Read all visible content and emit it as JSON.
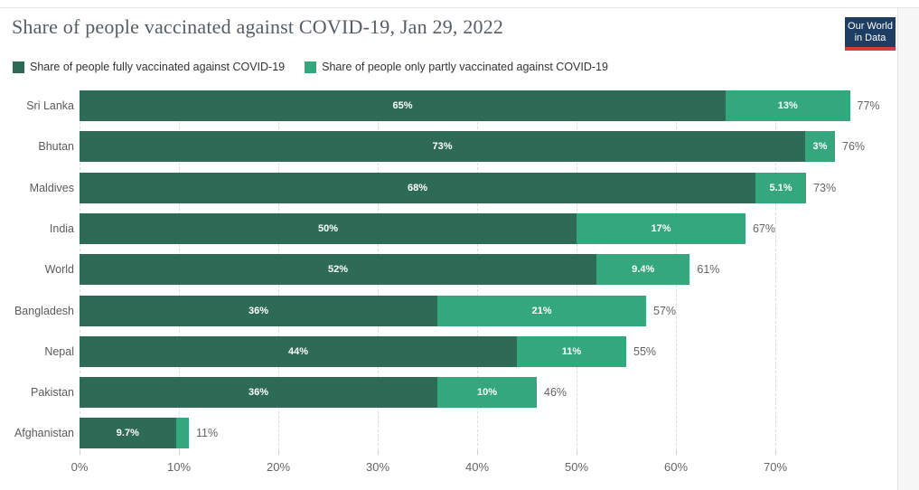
{
  "header": {
    "title": "Share of people vaccinated against COVID-19, Jan 29, 2022",
    "logo": {
      "line1": "Our World",
      "line2": "in Data",
      "bg_color": "#1d3d63",
      "underline_color": "#d73c3c"
    }
  },
  "legend": {
    "items": [
      {
        "label": "Share of people fully vaccinated against COVID-19",
        "color": "#2d6b57"
      },
      {
        "label": "Share of people only partly vaccinated against COVID-19",
        "color": "#34a87c"
      }
    ]
  },
  "chart_data": {
    "type": "bar",
    "orientation": "horizontal-stacked",
    "title": "Share of people vaccinated against COVID-19, Jan 29, 2022",
    "categories": [
      "Sri Lanka",
      "Bhutan",
      "Maldives",
      "India",
      "World",
      "Bangladesh",
      "Nepal",
      "Pakistan",
      "Afghanistan"
    ],
    "series": [
      {
        "name": "Share of people fully vaccinated against COVID-19",
        "color": "#2d6b57",
        "values": [
          65,
          73,
          68,
          50,
          52,
          36,
          44,
          36,
          9.7
        ],
        "labels": [
          "65%",
          "73%",
          "68%",
          "50%",
          "52%",
          "36%",
          "44%",
          "36%",
          "9.7%"
        ]
      },
      {
        "name": "Share of people only partly vaccinated against COVID-19",
        "color": "#34a87c",
        "values": [
          12.5,
          3,
          5.1,
          17,
          9.4,
          21,
          11,
          10,
          1.3
        ],
        "labels": [
          "13%",
          "3%",
          "5.1%",
          "17%",
          "9.4%",
          "21%",
          "11%",
          "10%",
          ""
        ]
      }
    ],
    "totals": [
      "77%",
      "76%",
      "73%",
      "67%",
      "61%",
      "57%",
      "55%",
      "46%",
      "11%"
    ],
    "x_ticks": [
      {
        "value": 0,
        "label": "0%"
      },
      {
        "value": 10,
        "label": "10%"
      },
      {
        "value": 20,
        "label": "20%"
      },
      {
        "value": 30,
        "label": "30%"
      },
      {
        "value": 40,
        "label": "40%"
      },
      {
        "value": 50,
        "label": "50%"
      },
      {
        "value": 60,
        "label": "60%"
      },
      {
        "value": 70,
        "label": "70%"
      }
    ],
    "xlim": [
      0,
      80
    ],
    "grid": true,
    "legend_position": "top"
  }
}
